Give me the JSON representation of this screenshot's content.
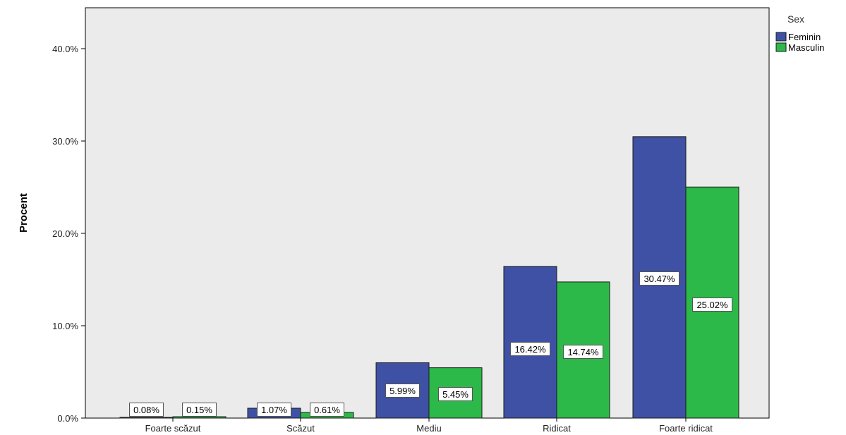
{
  "chart_data": {
    "type": "bar",
    "title": "",
    "xlabel": "",
    "ylabel": "Procent",
    "ylim": [
      0,
      45
    ],
    "yticks": [
      0,
      10,
      20,
      30,
      40
    ],
    "ytick_labels": [
      "0.0%",
      "10.0%",
      "20.0%",
      "30.0%",
      "40.0%"
    ],
    "grid": false,
    "legend_title": "Sex",
    "legend_position": "top-right",
    "categories": [
      "Foarte scăzut",
      "Scăzut",
      "Mediu",
      "Ridicat",
      "Foarte ridicat"
    ],
    "series": [
      {
        "name": "Feminin",
        "color": "#3F51A4",
        "values": [
          0.08,
          1.07,
          5.99,
          16.42,
          30.47
        ],
        "labels": [
          "0.08%",
          "1.07%",
          "5.99%",
          "16.42%",
          "30.47%"
        ]
      },
      {
        "name": "Masculin",
        "color": "#2DB84A",
        "values": [
          0.15,
          0.61,
          5.45,
          14.74,
          25.02
        ],
        "labels": [
          "0.15%",
          "0.61%",
          "5.45%",
          "14.74%",
          "25.02%"
        ]
      }
    ],
    "plot_background": "#EBEBEB"
  }
}
